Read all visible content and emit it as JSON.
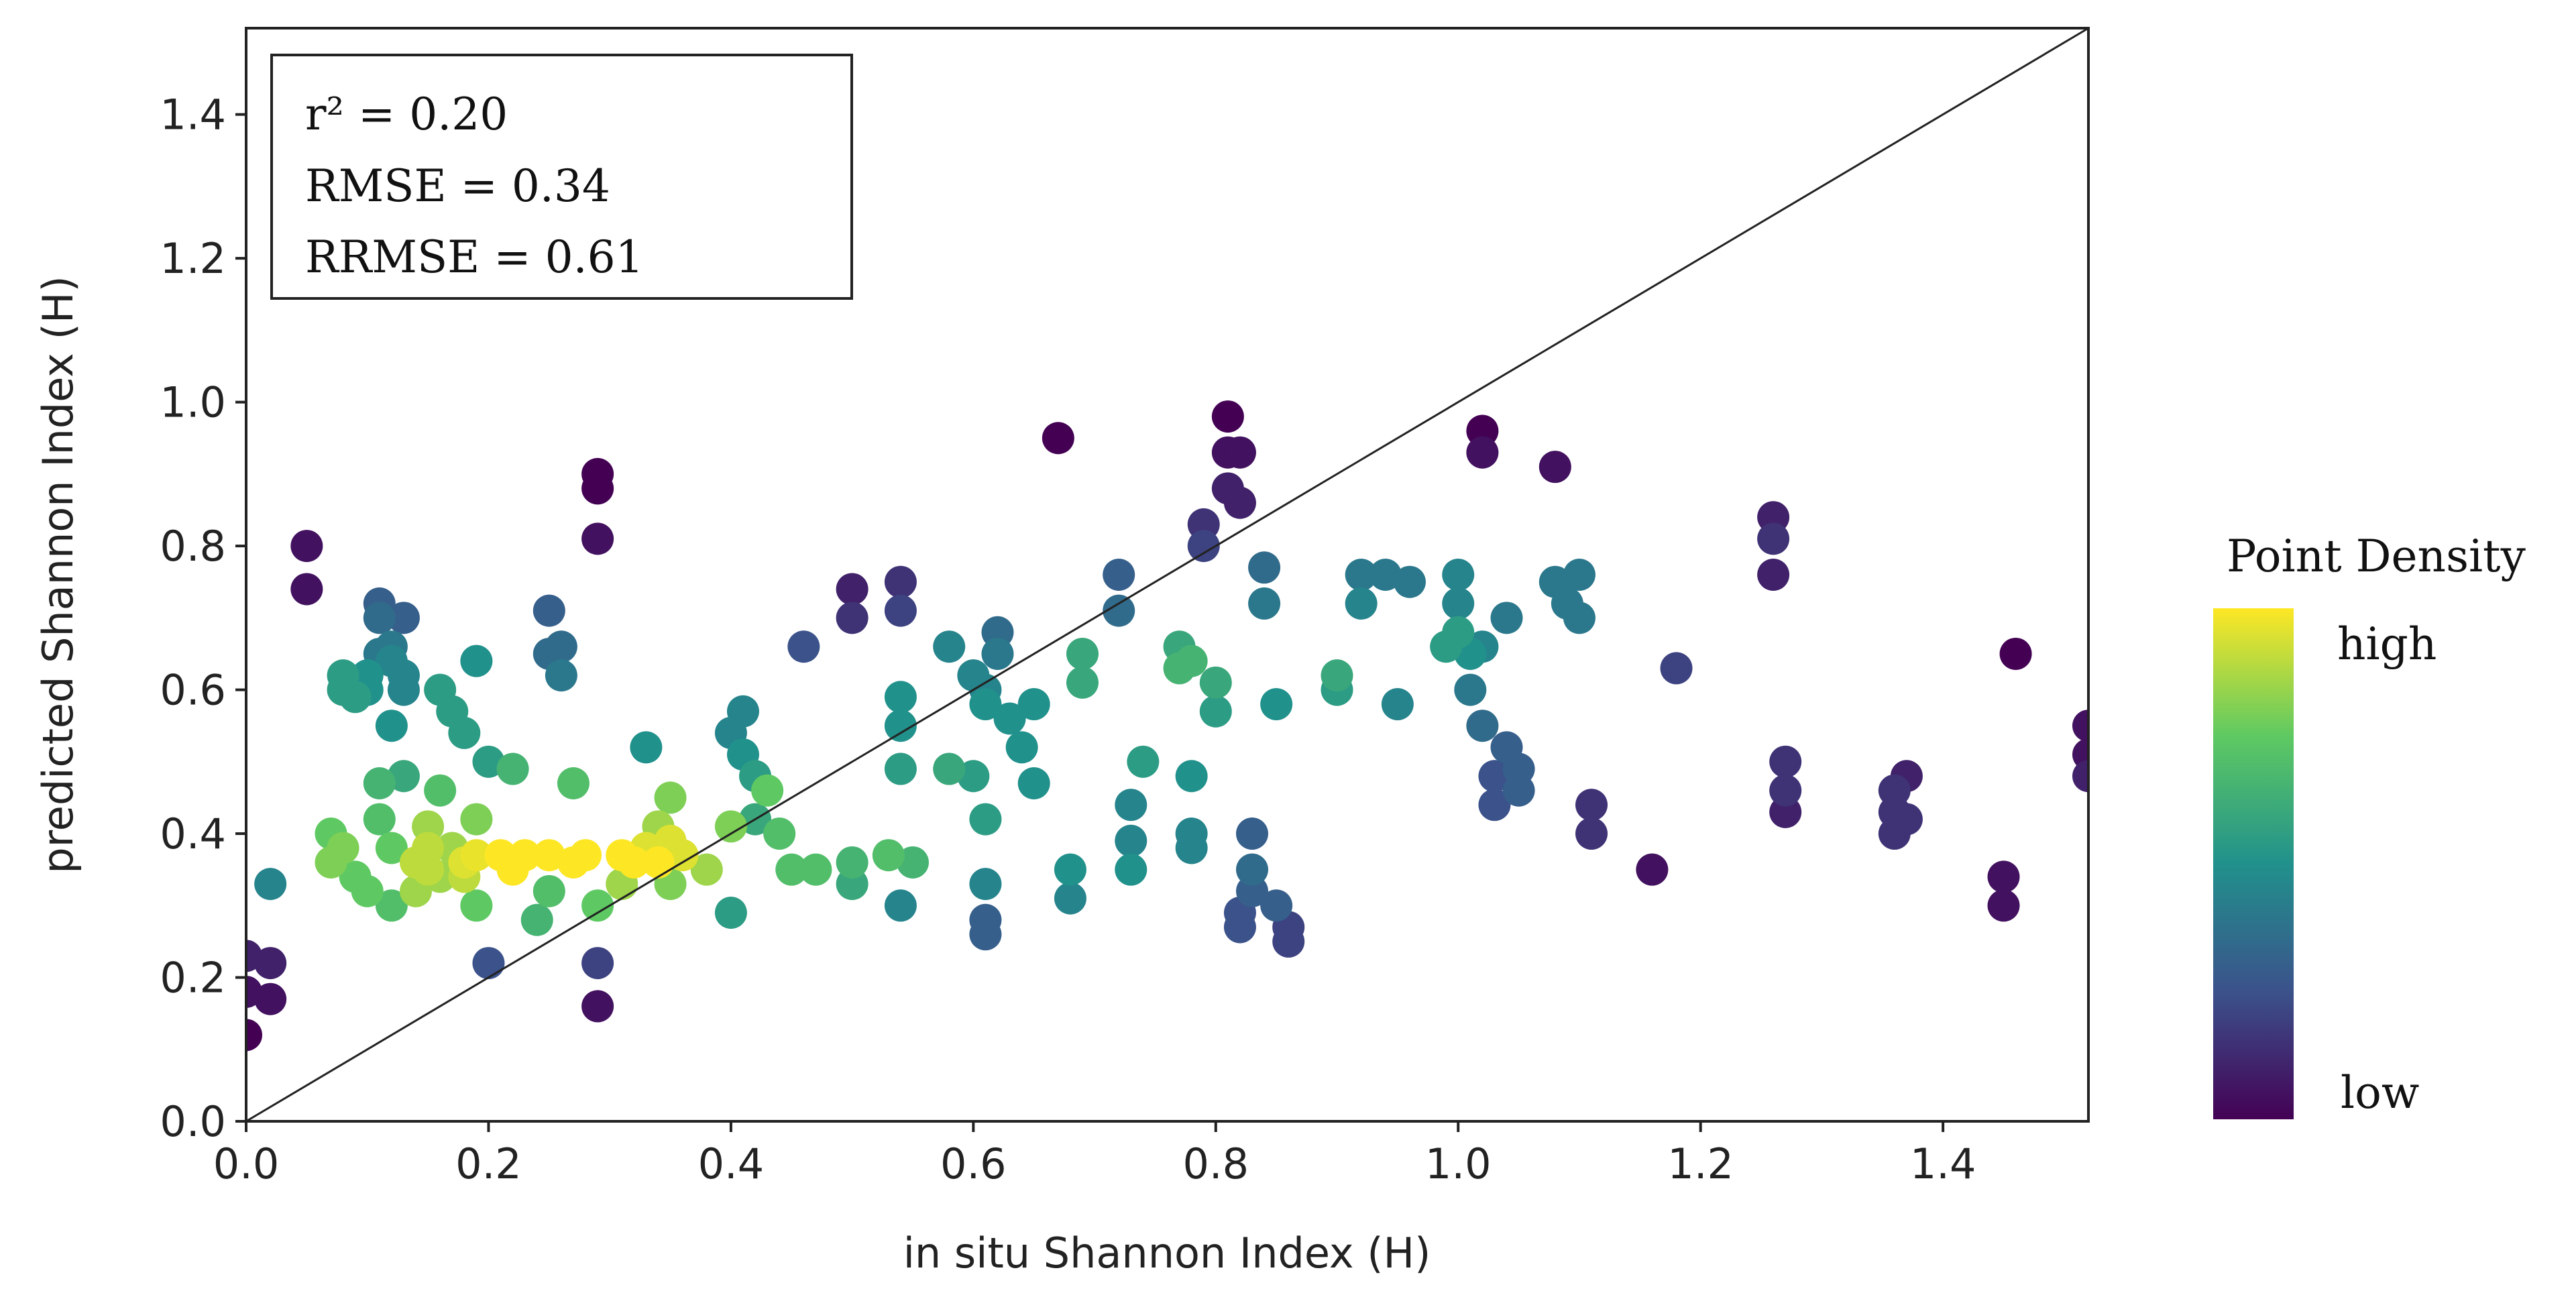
{
  "chart_data": {
    "type": "scatter",
    "title": "",
    "xlabel": "in situ Shannon Index (H)",
    "ylabel": "predicted Shannon Index (H)",
    "xlim": [
      0.0,
      1.52
    ],
    "ylim": [
      0.0,
      1.52
    ],
    "xticks": [
      "0.0",
      "0.2",
      "0.4",
      "0.6",
      "0.8",
      "1.0",
      "1.2",
      "1.4"
    ],
    "yticks": [
      "0.0",
      "0.2",
      "0.4",
      "0.6",
      "0.8",
      "1.0",
      "1.2",
      "1.4"
    ],
    "reference_line": "1:1",
    "stats": [
      "r² = 0.20",
      "RMSE = 0.34",
      "RRMSE = 0.61"
    ],
    "colorbar": {
      "title": "Point Density",
      "high_label": "high",
      "low_label": "low",
      "colors": [
        "#440154",
        "#3b528b",
        "#21918c",
        "#5ec962",
        "#fde725"
      ]
    },
    "points": [
      [
        0.0,
        0.12,
        0.0
      ],
      [
        0.0,
        0.18,
        0.05
      ],
      [
        0.0,
        0.23,
        0.1
      ],
      [
        0.02,
        0.22,
        0.1
      ],
      [
        0.02,
        0.17,
        0.05
      ],
      [
        0.02,
        0.33,
        0.45
      ],
      [
        0.05,
        0.8,
        0.05
      ],
      [
        0.05,
        0.74,
        0.05
      ],
      [
        0.07,
        0.4,
        0.75
      ],
      [
        0.07,
        0.36,
        0.8
      ],
      [
        0.08,
        0.38,
        0.8
      ],
      [
        0.08,
        0.6,
        0.55
      ],
      [
        0.08,
        0.62,
        0.55
      ],
      [
        0.09,
        0.34,
        0.75
      ],
      [
        0.09,
        0.59,
        0.55
      ],
      [
        0.1,
        0.32,
        0.75
      ],
      [
        0.1,
        0.6,
        0.5
      ],
      [
        0.1,
        0.62,
        0.5
      ],
      [
        0.11,
        0.72,
        0.3
      ],
      [
        0.11,
        0.7,
        0.35
      ],
      [
        0.11,
        0.65,
        0.4
      ],
      [
        0.11,
        0.42,
        0.7
      ],
      [
        0.11,
        0.47,
        0.65
      ],
      [
        0.12,
        0.66,
        0.4
      ],
      [
        0.12,
        0.64,
        0.45
      ],
      [
        0.12,
        0.3,
        0.7
      ],
      [
        0.12,
        0.55,
        0.5
      ],
      [
        0.12,
        0.38,
        0.75
      ],
      [
        0.13,
        0.7,
        0.3
      ],
      [
        0.13,
        0.6,
        0.45
      ],
      [
        0.13,
        0.62,
        0.45
      ],
      [
        0.13,
        0.48,
        0.6
      ],
      [
        0.14,
        0.32,
        0.85
      ],
      [
        0.14,
        0.36,
        0.9
      ],
      [
        0.15,
        0.38,
        0.9
      ],
      [
        0.15,
        0.35,
        0.9
      ],
      [
        0.15,
        0.41,
        0.85
      ],
      [
        0.16,
        0.34,
        0.85
      ],
      [
        0.16,
        0.6,
        0.55
      ],
      [
        0.16,
        0.46,
        0.7
      ],
      [
        0.17,
        0.38,
        0.85
      ],
      [
        0.17,
        0.57,
        0.55
      ],
      [
        0.18,
        0.36,
        0.95
      ],
      [
        0.18,
        0.34,
        0.9
      ],
      [
        0.18,
        0.54,
        0.55
      ],
      [
        0.19,
        0.37,
        0.97
      ],
      [
        0.19,
        0.3,
        0.75
      ],
      [
        0.19,
        0.42,
        0.8
      ],
      [
        0.19,
        0.64,
        0.5
      ],
      [
        0.2,
        0.5,
        0.55
      ],
      [
        0.2,
        0.22,
        0.25
      ],
      [
        0.21,
        0.37,
        1.0
      ],
      [
        0.22,
        0.35,
        1.0
      ],
      [
        0.22,
        0.49,
        0.65
      ],
      [
        0.23,
        0.37,
        1.0
      ],
      [
        0.24,
        0.28,
        0.65
      ],
      [
        0.25,
        0.37,
        1.0
      ],
      [
        0.25,
        0.32,
        0.7
      ],
      [
        0.25,
        0.71,
        0.3
      ],
      [
        0.25,
        0.65,
        0.35
      ],
      [
        0.26,
        0.66,
        0.35
      ],
      [
        0.26,
        0.62,
        0.4
      ],
      [
        0.27,
        0.36,
        1.0
      ],
      [
        0.27,
        0.47,
        0.7
      ],
      [
        0.28,
        0.37,
        1.0
      ],
      [
        0.29,
        0.9,
        0.0
      ],
      [
        0.29,
        0.88,
        0.0
      ],
      [
        0.29,
        0.81,
        0.05
      ],
      [
        0.29,
        0.3,
        0.75
      ],
      [
        0.29,
        0.22,
        0.2
      ],
      [
        0.29,
        0.16,
        0.05
      ],
      [
        0.31,
        0.37,
        1.0
      ],
      [
        0.31,
        0.33,
        0.85
      ],
      [
        0.32,
        0.36,
        1.0
      ],
      [
        0.33,
        0.38,
        0.95
      ],
      [
        0.33,
        0.52,
        0.5
      ],
      [
        0.34,
        0.36,
        1.0
      ],
      [
        0.34,
        0.41,
        0.85
      ],
      [
        0.35,
        0.39,
        0.95
      ],
      [
        0.35,
        0.45,
        0.8
      ],
      [
        0.35,
        0.33,
        0.8
      ],
      [
        0.36,
        0.37,
        0.95
      ],
      [
        0.38,
        0.35,
        0.85
      ],
      [
        0.4,
        0.41,
        0.8
      ],
      [
        0.4,
        0.29,
        0.55
      ],
      [
        0.4,
        0.54,
        0.45
      ],
      [
        0.41,
        0.57,
        0.45
      ],
      [
        0.41,
        0.51,
        0.5
      ],
      [
        0.42,
        0.48,
        0.55
      ],
      [
        0.42,
        0.42,
        0.6
      ],
      [
        0.43,
        0.46,
        0.75
      ],
      [
        0.44,
        0.4,
        0.7
      ],
      [
        0.45,
        0.35,
        0.7
      ],
      [
        0.46,
        0.66,
        0.25
      ],
      [
        0.47,
        0.35,
        0.7
      ],
      [
        0.5,
        0.74,
        0.1
      ],
      [
        0.5,
        0.7,
        0.15
      ],
      [
        0.5,
        0.36,
        0.65
      ],
      [
        0.5,
        0.33,
        0.6
      ],
      [
        0.53,
        0.37,
        0.7
      ],
      [
        0.54,
        0.75,
        0.15
      ],
      [
        0.54,
        0.71,
        0.2
      ],
      [
        0.54,
        0.59,
        0.5
      ],
      [
        0.54,
        0.55,
        0.5
      ],
      [
        0.54,
        0.49,
        0.55
      ],
      [
        0.54,
        0.3,
        0.45
      ],
      [
        0.55,
        0.36,
        0.65
      ],
      [
        0.58,
        0.49,
        0.6
      ],
      [
        0.58,
        0.66,
        0.45
      ],
      [
        0.6,
        0.62,
        0.45
      ],
      [
        0.6,
        0.48,
        0.55
      ],
      [
        0.61,
        0.6,
        0.45
      ],
      [
        0.61,
        0.58,
        0.5
      ],
      [
        0.61,
        0.42,
        0.55
      ],
      [
        0.61,
        0.33,
        0.45
      ],
      [
        0.61,
        0.28,
        0.3
      ],
      [
        0.61,
        0.26,
        0.3
      ],
      [
        0.62,
        0.68,
        0.35
      ],
      [
        0.62,
        0.65,
        0.4
      ],
      [
        0.63,
        0.56,
        0.5
      ],
      [
        0.64,
        0.52,
        0.5
      ],
      [
        0.65,
        0.47,
        0.5
      ],
      [
        0.65,
        0.58,
        0.5
      ],
      [
        0.67,
        0.95,
        0.0
      ],
      [
        0.68,
        0.35,
        0.5
      ],
      [
        0.68,
        0.31,
        0.45
      ],
      [
        0.69,
        0.65,
        0.6
      ],
      [
        0.69,
        0.61,
        0.6
      ],
      [
        0.72,
        0.76,
        0.3
      ],
      [
        0.72,
        0.71,
        0.35
      ],
      [
        0.73,
        0.44,
        0.45
      ],
      [
        0.73,
        0.39,
        0.45
      ],
      [
        0.73,
        0.35,
        0.5
      ],
      [
        0.74,
        0.5,
        0.55
      ],
      [
        0.77,
        0.66,
        0.6
      ],
      [
        0.77,
        0.63,
        0.65
      ],
      [
        0.78,
        0.64,
        0.65
      ],
      [
        0.78,
        0.38,
        0.45
      ],
      [
        0.78,
        0.4,
        0.45
      ],
      [
        0.78,
        0.48,
        0.5
      ],
      [
        0.79,
        0.83,
        0.15
      ],
      [
        0.79,
        0.8,
        0.2
      ],
      [
        0.8,
        0.61,
        0.6
      ],
      [
        0.8,
        0.57,
        0.55
      ],
      [
        0.81,
        0.98,
        0.0
      ],
      [
        0.81,
        0.93,
        0.05
      ],
      [
        0.81,
        0.88,
        0.1
      ],
      [
        0.82,
        0.86,
        0.1
      ],
      [
        0.82,
        0.93,
        0.05
      ],
      [
        0.82,
        0.29,
        0.25
      ],
      [
        0.82,
        0.27,
        0.25
      ],
      [
        0.83,
        0.4,
        0.3
      ],
      [
        0.83,
        0.35,
        0.35
      ],
      [
        0.83,
        0.32,
        0.3
      ],
      [
        0.84,
        0.77,
        0.35
      ],
      [
        0.84,
        0.72,
        0.4
      ],
      [
        0.85,
        0.58,
        0.5
      ],
      [
        0.85,
        0.3,
        0.3
      ],
      [
        0.86,
        0.25,
        0.2
      ],
      [
        0.86,
        0.27,
        0.2
      ],
      [
        0.9,
        0.6,
        0.55
      ],
      [
        0.9,
        0.62,
        0.6
      ],
      [
        0.92,
        0.76,
        0.4
      ],
      [
        0.92,
        0.72,
        0.45
      ],
      [
        0.94,
        0.76,
        0.4
      ],
      [
        0.95,
        0.58,
        0.45
      ],
      [
        0.96,
        0.75,
        0.4
      ],
      [
        0.99,
        0.66,
        0.55
      ],
      [
        1.0,
        0.68,
        0.55
      ],
      [
        1.0,
        0.72,
        0.45
      ],
      [
        1.0,
        0.76,
        0.45
      ],
      [
        1.01,
        0.65,
        0.5
      ],
      [
        1.01,
        0.6,
        0.4
      ],
      [
        1.02,
        0.96,
        0.0
      ],
      [
        1.02,
        0.93,
        0.05
      ],
      [
        1.02,
        0.55,
        0.35
      ],
      [
        1.02,
        0.66,
        0.45
      ],
      [
        1.03,
        0.44,
        0.25
      ],
      [
        1.03,
        0.48,
        0.25
      ],
      [
        1.04,
        0.7,
        0.4
      ],
      [
        1.04,
        0.52,
        0.3
      ],
      [
        1.05,
        0.46,
        0.3
      ],
      [
        1.05,
        0.49,
        0.3
      ],
      [
        1.08,
        0.91,
        0.05
      ],
      [
        1.08,
        0.75,
        0.4
      ],
      [
        1.09,
        0.72,
        0.4
      ],
      [
        1.1,
        0.7,
        0.4
      ],
      [
        1.1,
        0.76,
        0.4
      ],
      [
        1.11,
        0.44,
        0.15
      ],
      [
        1.11,
        0.4,
        0.15
      ],
      [
        1.16,
        0.35,
        0.05
      ],
      [
        1.18,
        0.63,
        0.2
      ],
      [
        1.26,
        0.84,
        0.1
      ],
      [
        1.26,
        0.81,
        0.15
      ],
      [
        1.26,
        0.76,
        0.1
      ],
      [
        1.27,
        0.5,
        0.15
      ],
      [
        1.27,
        0.46,
        0.15
      ],
      [
        1.27,
        0.43,
        0.1
      ],
      [
        1.36,
        0.46,
        0.15
      ],
      [
        1.36,
        0.43,
        0.15
      ],
      [
        1.36,
        0.4,
        0.15
      ],
      [
        1.37,
        0.48,
        0.1
      ],
      [
        1.37,
        0.42,
        0.15
      ],
      [
        1.45,
        0.34,
        0.05
      ],
      [
        1.45,
        0.3,
        0.05
      ],
      [
        1.46,
        0.65,
        0.0
      ],
      [
        1.52,
        0.55,
        0.05
      ],
      [
        1.52,
        0.51,
        0.05
      ],
      [
        1.52,
        0.48,
        0.1
      ]
    ]
  }
}
